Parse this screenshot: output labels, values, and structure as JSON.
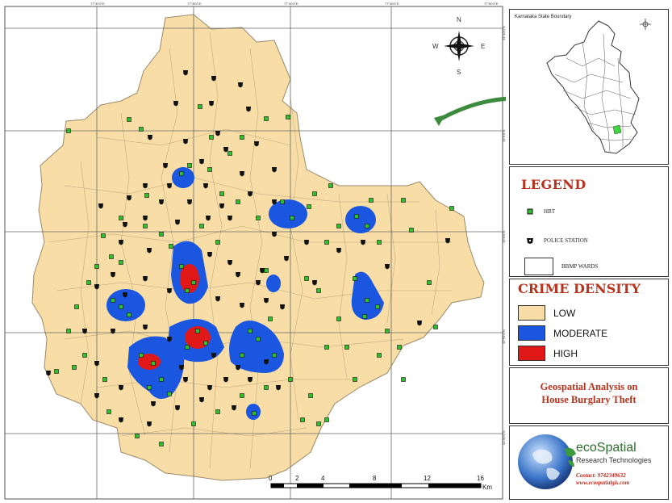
{
  "map": {
    "top_tick_labels": [
      "77°30'0\"E",
      "77°35'0\"E",
      "77°40'0\"E",
      "77°45'0\"E",
      "77°50'0\"E"
    ],
    "right_tick_labels": [
      "13°10'0\"N",
      "13°5'0\"N",
      "13°0'0\"N",
      "12°55'0\"N",
      "12°50'0\"N"
    ],
    "north_arrow": {
      "n": "N",
      "s": "S",
      "e": "E",
      "w": "W"
    },
    "scale_bar": {
      "labels": [
        "0",
        "2",
        "4",
        "8",
        "12",
        "16"
      ],
      "unit": "Km"
    }
  },
  "inset": {
    "label": "Karnataka State Boundary"
  },
  "legend": {
    "title": "LEGEND",
    "items": [
      {
        "label": "HBT",
        "icon": "green-square-marker"
      },
      {
        "label": "POLICE STATION",
        "icon": "police-station-icon"
      },
      {
        "label": "BBMP WARDS",
        "icon": "ward-outline-box"
      }
    ]
  },
  "crime_density": {
    "title": "CRIME DENSITY",
    "items": [
      {
        "label": "LOW",
        "color": "#f8dea6"
      },
      {
        "label": "MODERATE",
        "color": "#1a56e0"
      },
      {
        "label": "HIGH",
        "color": "#e01818"
      }
    ]
  },
  "map_title": {
    "line1": "Geospatial Analysis on",
    "line2": "House Burglary Theft"
  },
  "logo": {
    "name": "ecoSpatial",
    "subtitle": "Research Technologies",
    "contact": "Contact: 9742349632",
    "website": "www.ecospatialgis.com"
  },
  "colors": {
    "low": "#f8dea6",
    "moderate": "#1a56e0",
    "high": "#e01818",
    "hbt": "#2fbf2f",
    "title_red": "#b8331e"
  }
}
